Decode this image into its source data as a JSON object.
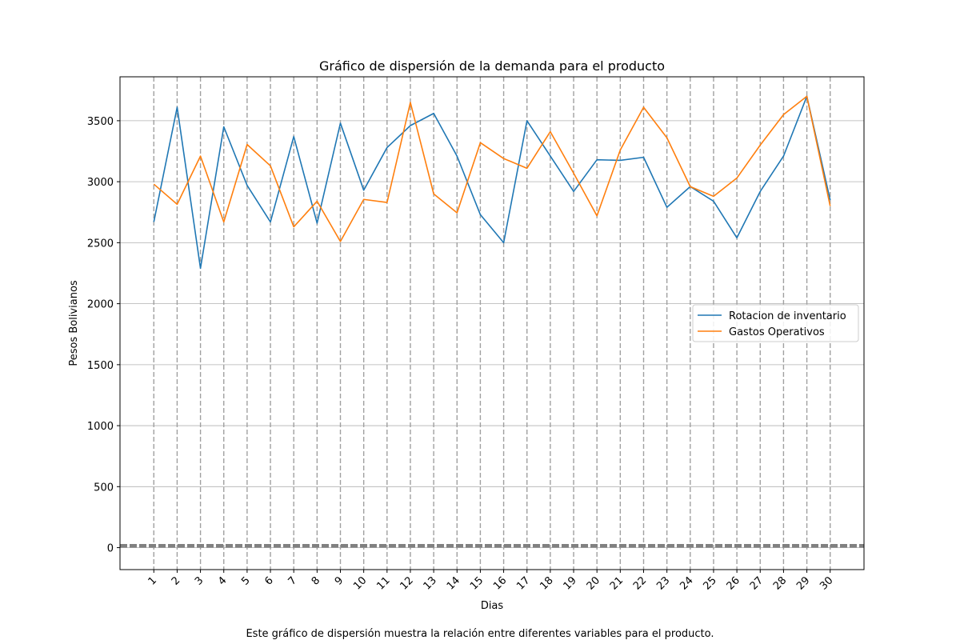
{
  "chart_data": {
    "type": "line",
    "title": "Gráfico de dispersión de la demanda para el producto",
    "xlabel": "Dias",
    "ylabel": "Pesos Bolivianos",
    "caption": "Este gráfico de dispersión muestra la relación entre diferentes variables para el producto.",
    "x": [
      1,
      2,
      3,
      4,
      5,
      6,
      7,
      8,
      9,
      10,
      11,
      12,
      13,
      14,
      15,
      16,
      17,
      18,
      19,
      20,
      21,
      22,
      23,
      24,
      25,
      26,
      27,
      28,
      29,
      30
    ],
    "x_tick_labels": [
      "1",
      "2",
      "3",
      "4",
      "5",
      "6",
      "7",
      "8",
      "9",
      "10",
      "11",
      "12",
      "13",
      "14",
      "15",
      "16",
      "17",
      "18",
      "19",
      "20",
      "21",
      "22",
      "23",
      "24",
      "25",
      "26",
      "27",
      "28",
      "29",
      "30"
    ],
    "y_ticks": [
      0,
      500,
      1000,
      1500,
      2000,
      2500,
      3000,
      3500
    ],
    "y_tick_labels": [
      "0",
      "500",
      "1000",
      "1500",
      "2000",
      "2500",
      "3000",
      "3500"
    ],
    "xlim": [
      -0.45,
      31.45
    ],
    "ylim": [
      -180,
      3860
    ],
    "grid": "horizontal solid; vertical dashed at each day",
    "baseline": {
      "y": 15,
      "style": "thick dashed gray"
    },
    "legend_position": "center-right",
    "series": [
      {
        "name": "Rotacion de inventario",
        "color": "#1f77b4",
        "values": [
          2670,
          3610,
          2290,
          3450,
          2970,
          2670,
          3370,
          2660,
          3480,
          2930,
          3280,
          3460,
          3560,
          3210,
          2730,
          2500,
          3500,
          3210,
          2920,
          3180,
          3175,
          3200,
          2790,
          2960,
          2840,
          2540,
          2920,
          3210,
          3700,
          2850
        ]
      },
      {
        "name": "Gastos Operativos",
        "color": "#ff7f0e",
        "values": [
          2980,
          2815,
          3210,
          2670,
          3305,
          3130,
          2630,
          2840,
          2510,
          2855,
          2830,
          3650,
          2900,
          2745,
          3320,
          3190,
          3110,
          3410,
          3070,
          2720,
          3260,
          3610,
          3360,
          2960,
          2880,
          3030,
          3300,
          3550,
          3700,
          2800
        ]
      }
    ]
  }
}
